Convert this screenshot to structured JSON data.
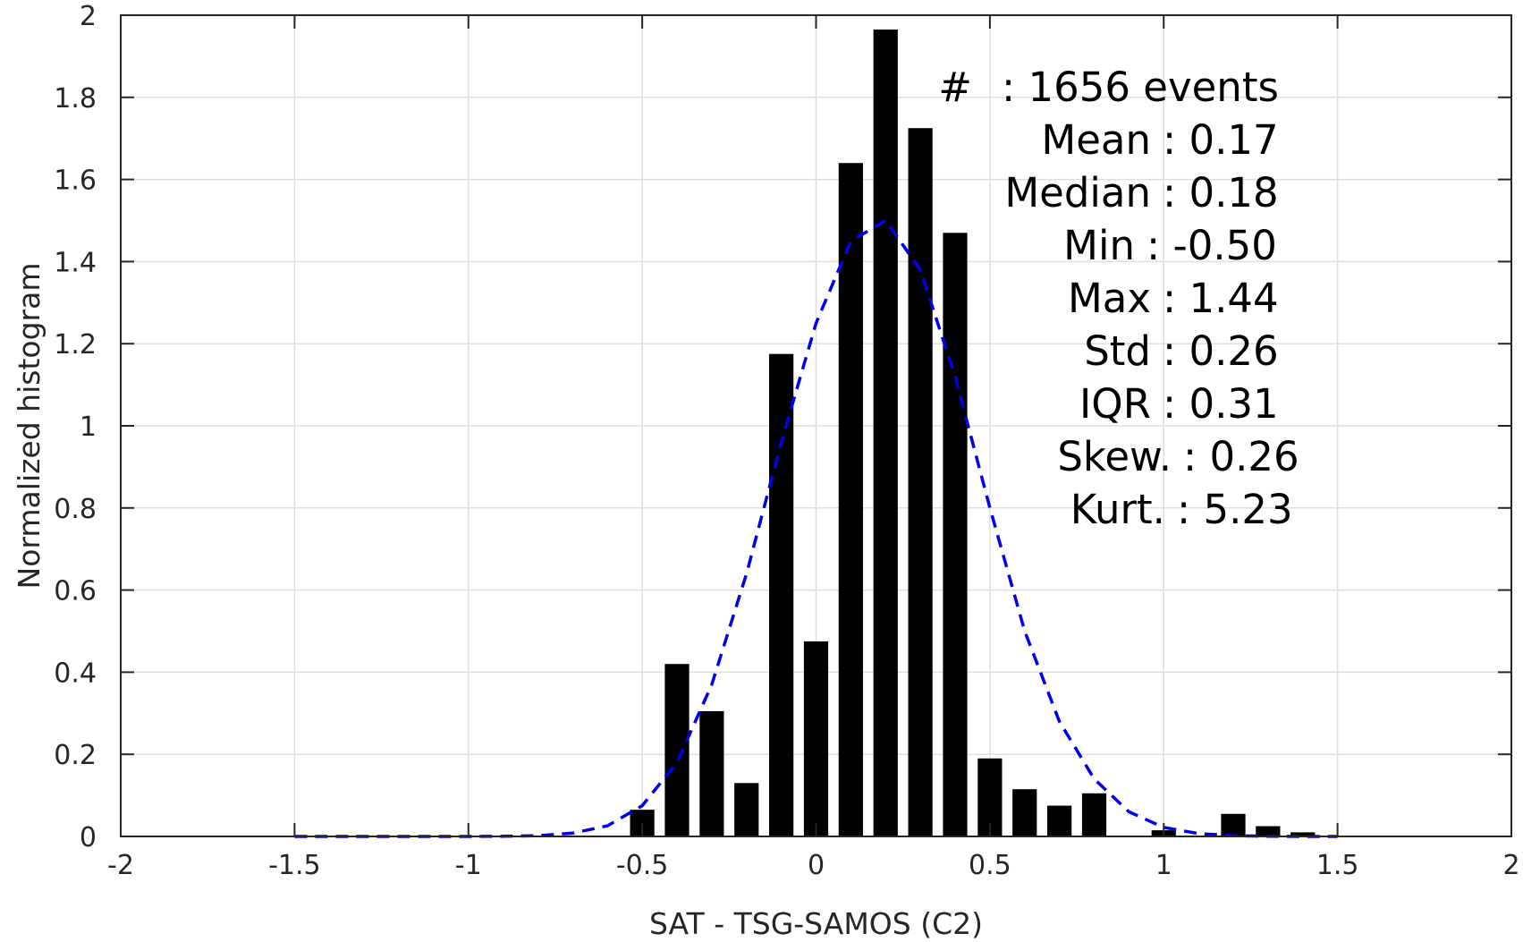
{
  "chart_data": {
    "type": "bar",
    "xlabel": "SAT - TSG-SAMOS (C2)",
    "ylabel": "Normalized histogram",
    "xlim": [
      -2,
      2
    ],
    "ylim": [
      0,
      2
    ],
    "x_ticks": [
      -2,
      -1.5,
      -1,
      -0.5,
      0,
      0.5,
      1,
      1.5,
      2
    ],
    "x_tick_labels": [
      "-2",
      "-1.5",
      "-1",
      "-0.5",
      "0",
      "0.5",
      "1",
      "1.5",
      "2"
    ],
    "y_ticks": [
      0,
      0.2,
      0.4,
      0.6,
      0.8,
      1,
      1.2,
      1.4,
      1.6,
      1.8,
      2
    ],
    "y_tick_labels": [
      "0",
      "0.2",
      "0.4",
      "0.6",
      "0.8",
      "1",
      "1.2",
      "1.4",
      "1.6",
      "1.8",
      "2"
    ],
    "grid": true,
    "bar_width": 0.07,
    "bars": {
      "x": [
        -0.5,
        -0.4,
        -0.3,
        -0.2,
        -0.1,
        0.0,
        0.1,
        0.2,
        0.3,
        0.4,
        0.5,
        0.6,
        0.7,
        0.8,
        1.0,
        1.2,
        1.3,
        1.4
      ],
      "values": [
        0.065,
        0.42,
        0.305,
        0.13,
        1.175,
        0.475,
        1.64,
        1.965,
        1.725,
        1.47,
        0.19,
        0.115,
        0.075,
        0.105,
        0.015,
        0.055,
        0.025,
        0.01
      ]
    },
    "fit_curve": {
      "style": "dashed",
      "color": "#0000ee",
      "x": [
        -1.5,
        -1.4,
        -1.3,
        -1.2,
        -1.1,
        -1.0,
        -0.9,
        -0.8,
        -0.7,
        -0.6,
        -0.5,
        -0.4,
        -0.3,
        -0.2,
        -0.1,
        0.0,
        0.1,
        0.2,
        0.3,
        0.4,
        0.5,
        0.6,
        0.7,
        0.8,
        0.9,
        1.0,
        1.1,
        1.2,
        1.3,
        1.4,
        1.5
      ],
      "y": [
        0.0,
        0.0,
        0.0,
        0.0,
        0.0,
        0.0,
        0.0005,
        0.002,
        0.008,
        0.026,
        0.075,
        0.18,
        0.37,
        0.64,
        0.96,
        1.25,
        1.45,
        1.5,
        1.38,
        1.12,
        0.8,
        0.5,
        0.28,
        0.14,
        0.06,
        0.022,
        0.007,
        0.002,
        0.0005,
        0.0,
        0.0
      ]
    },
    "stats": [
      {
        "label": "#",
        "value": ": 1656 events"
      },
      {
        "label": "Mean",
        "value": ": 0.17"
      },
      {
        "label": "Median",
        "value": ": 0.18"
      },
      {
        "label": "Min",
        "value": ": -0.50"
      },
      {
        "label": "Max",
        "value": ": 1.44"
      },
      {
        "label": "Std",
        "value": ": 0.26"
      },
      {
        "label": "IQR",
        "value": ": 0.31"
      },
      {
        "label": "Skew.",
        "value": ": 0.26"
      },
      {
        "label": "Kurt.",
        "value": ": 5.23"
      }
    ],
    "colors": {
      "bars": "#000000",
      "grid": "#dedede",
      "axes": "#262626",
      "fit": "#0000ee"
    }
  }
}
